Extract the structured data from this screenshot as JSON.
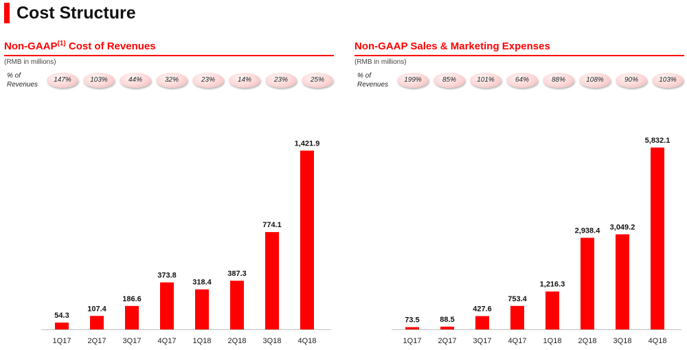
{
  "page": {
    "title": "Cost Structure"
  },
  "colors": {
    "accent": "#ff0000",
    "bar": "#ff0000",
    "pill": "#fbd6d6"
  },
  "panels": [
    {
      "title": "Non-GAAP",
      "title_sup": "(1)",
      "title_rest": " Cost of Revenues",
      "units": "(RMB in millions)",
      "pct_label_line1": "% of",
      "pct_label_line2": "Revenues",
      "pct": [
        "147%",
        "103%",
        "44%",
        "32%",
        "23%",
        "14%",
        "23%",
        "25%"
      ]
    },
    {
      "title": "Non-GAAP Sales & Marketing Expenses",
      "title_sup": "",
      "title_rest": "",
      "units": "(RMB in millions)",
      "pct_label_line1": "% of",
      "pct_label_line2": "Revenues",
      "pct": [
        "199%",
        "85%",
        "101%",
        "64%",
        "88%",
        "108%",
        "90%",
        "103%"
      ]
    }
  ],
  "chart_data": [
    {
      "type": "bar",
      "title": "Non-GAAP(1) Cost of Revenues",
      "categories": [
        "1Q17",
        "2Q17",
        "3Q17",
        "4Q17",
        "1Q18",
        "2Q18",
        "3Q18",
        "4Q18"
      ],
      "values": [
        54.3,
        107.4,
        186.6,
        373.8,
        318.4,
        387.3,
        774.1,
        1421.9
      ],
      "labels": [
        "54.3",
        "107.4",
        "186.6",
        "373.8",
        "318.4",
        "387.3",
        "774.1",
        "1,421.9"
      ],
      "ylim": [
        0,
        1550
      ],
      "grid": false
    },
    {
      "type": "bar",
      "title": "Non-GAAP Sales & Marketing Expenses",
      "categories": [
        "1Q17",
        "2Q17",
        "3Q17",
        "4Q17",
        "1Q18",
        "2Q18",
        "3Q18",
        "4Q18"
      ],
      "values": [
        73.5,
        88.5,
        427.6,
        753.4,
        1216.3,
        2938.4,
        3049.2,
        5832.1
      ],
      "labels": [
        "73.5",
        "88.5",
        "427.6",
        "753.4",
        "1,216.3",
        "2,938.4",
        "3,049.2",
        "5,832.1"
      ],
      "ylim": [
        0,
        6250
      ],
      "grid": false
    }
  ]
}
